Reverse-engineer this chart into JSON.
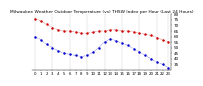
{
  "title": "Milwaukee Weather Outdoor Temperature (vs) THSW Index per Hour (Last 24 Hours)",
  "hours": [
    0,
    1,
    2,
    3,
    4,
    5,
    6,
    7,
    8,
    9,
    10,
    11,
    12,
    13,
    14,
    15,
    16,
    17,
    18,
    19,
    20,
    21,
    22,
    23
  ],
  "temp": [
    76,
    74,
    71,
    68,
    66,
    65,
    65,
    64,
    63,
    63,
    64,
    65,
    65,
    66,
    66,
    65,
    65,
    64,
    63,
    62,
    61,
    59,
    57,
    55
  ],
  "thsw": [
    60,
    57,
    53,
    50,
    47,
    45,
    44,
    43,
    42,
    43,
    46,
    50,
    55,
    58,
    56,
    54,
    52,
    49,
    46,
    43,
    40,
    37,
    35,
    32
  ],
  "temp_color": "#cc0000",
  "thsw_color": "#0000cc",
  "bg_color": "#ffffff",
  "grid_color": "#888888",
  "ylim": [
    30,
    80
  ],
  "yticks": [
    35,
    40,
    45,
    50,
    55,
    60,
    65,
    70,
    75,
    80
  ],
  "vgrid_positions": [
    0,
    3,
    6,
    9,
    12,
    15,
    18,
    21,
    23
  ],
  "xtick_positions": [
    0,
    1,
    2,
    3,
    4,
    5,
    6,
    7,
    8,
    9,
    10,
    11,
    12,
    13,
    14,
    15,
    16,
    17,
    18,
    19,
    20,
    21,
    22,
    23
  ],
  "ylabel_fontsize": 3.0,
  "xlabel_fontsize": 2.8,
  "title_fontsize": 3.2
}
